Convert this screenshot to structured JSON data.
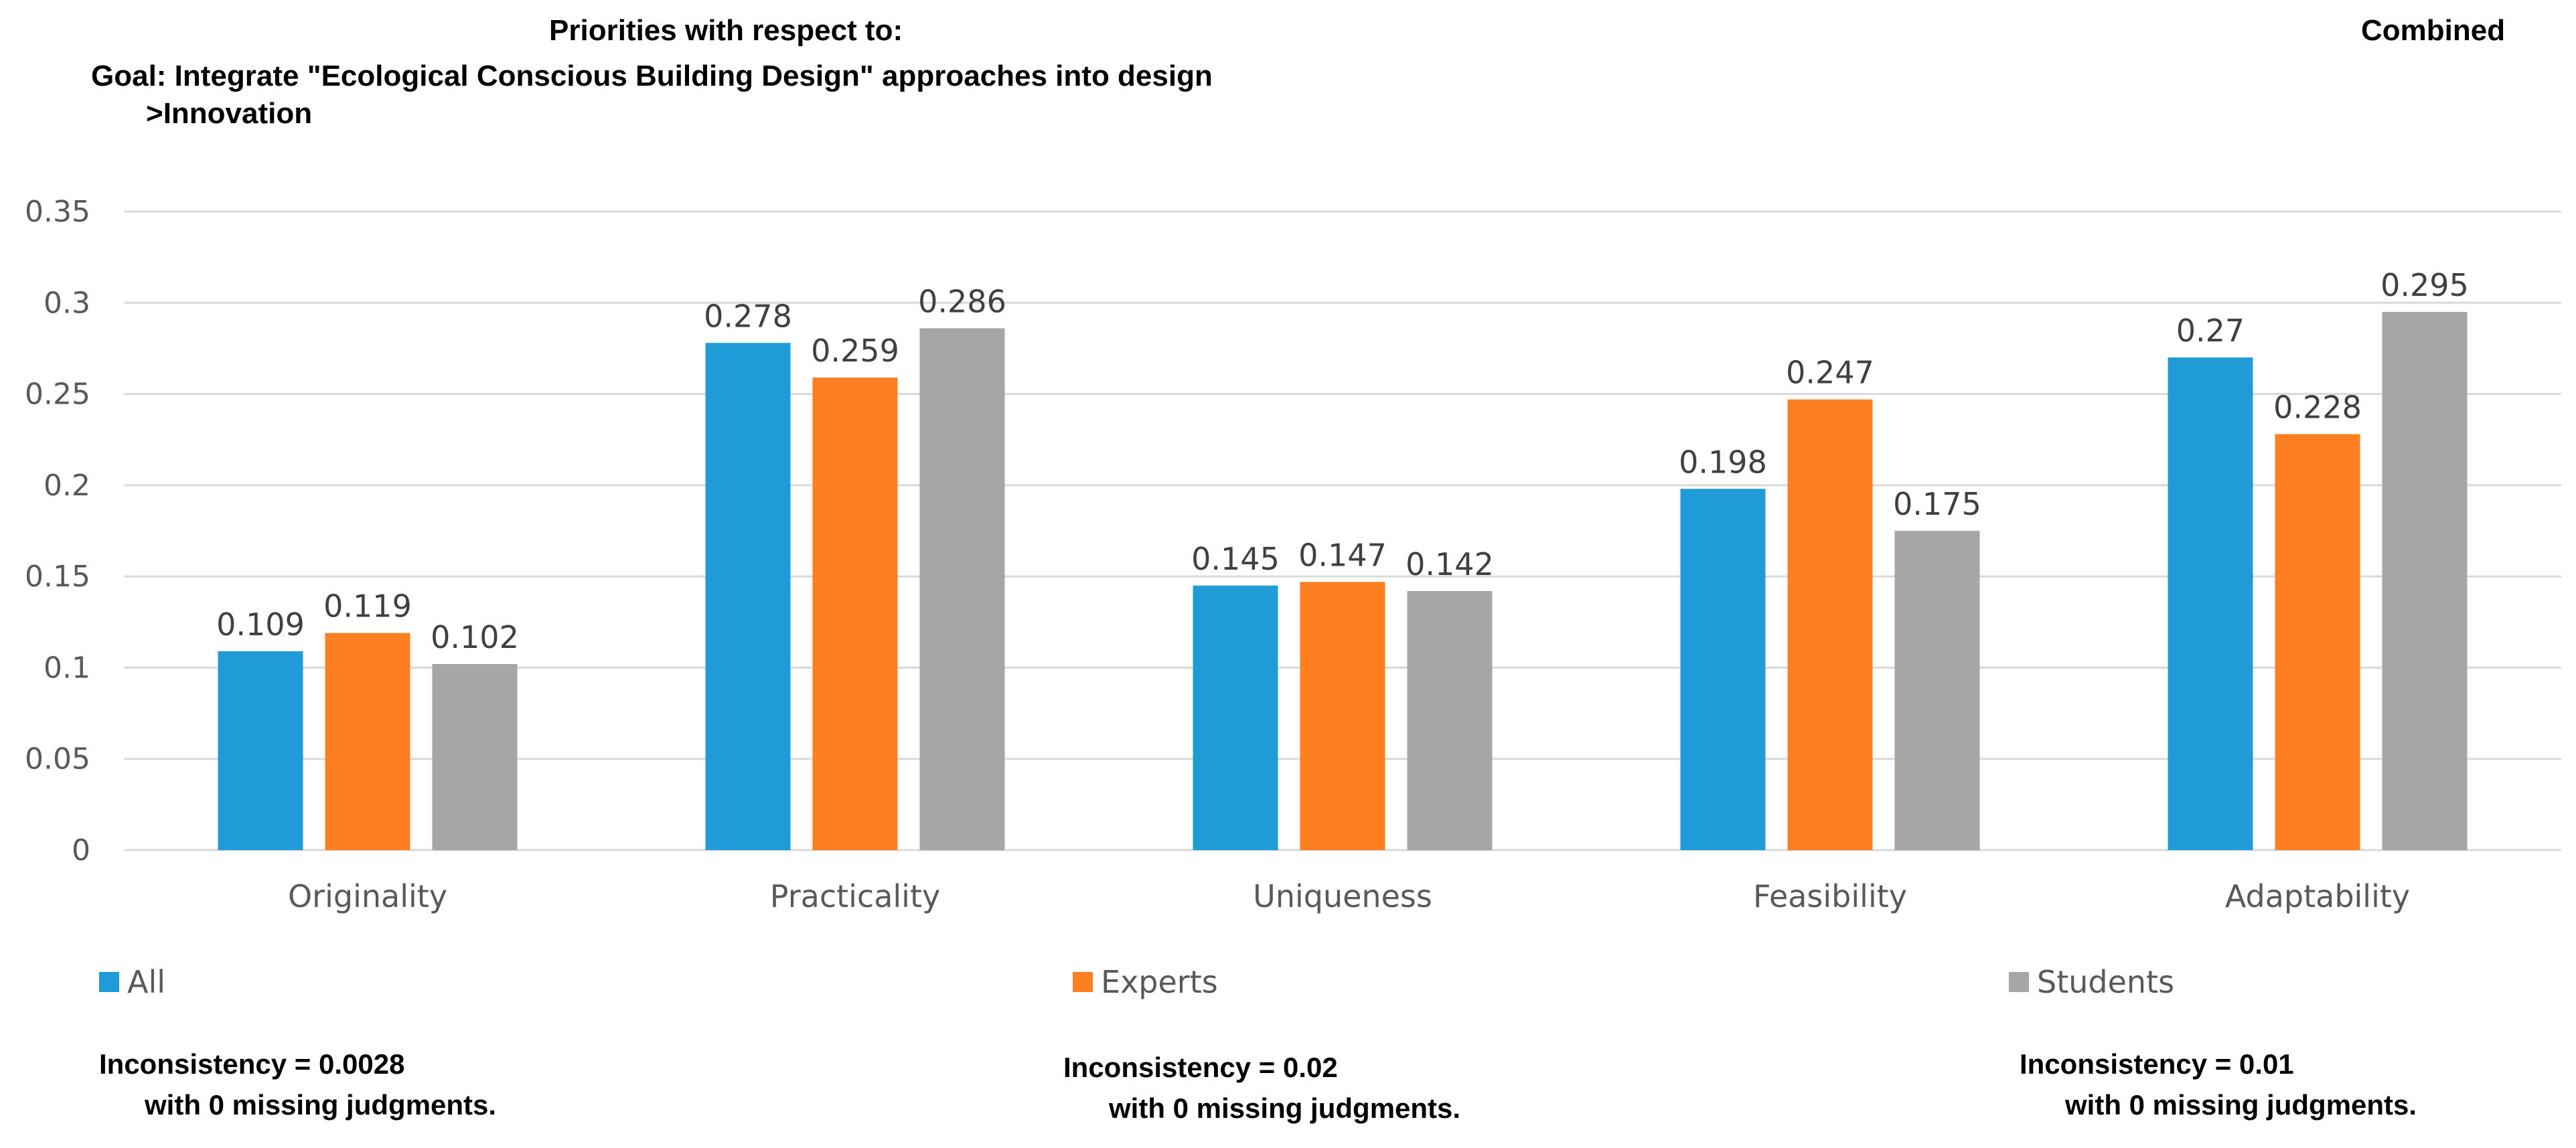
{
  "header": {
    "priorities": "Priorities with respect to:",
    "goal": "Goal: Integrate \"Ecological Conscious Building Design\" approaches into design",
    "sub": ">Innovation",
    "combined": "Combined"
  },
  "colors": {
    "All": "#1f9bd7",
    "Experts": "#fd7f22",
    "Students": "#a6a6a6",
    "grid": "#d9d9d9"
  },
  "chart_data": {
    "type": "bar",
    "categories": [
      "Originality",
      "Practicality",
      "Uniqueness",
      "Feasibility",
      "Adaptability"
    ],
    "series": [
      {
        "name": "All",
        "values": [
          0.109,
          0.278,
          0.145,
          0.198,
          0.27
        ]
      },
      {
        "name": "Experts",
        "values": [
          0.119,
          0.259,
          0.147,
          0.247,
          0.228
        ]
      },
      {
        "name": "Students",
        "values": [
          0.102,
          0.286,
          0.142,
          0.175,
          0.295
        ]
      }
    ],
    "ylim": [
      0,
      0.35
    ],
    "yticks": [
      "0",
      "0.05",
      "0.1",
      "0.15",
      "0.2",
      "0.25",
      "0.3",
      "0.35"
    ],
    "grid": true,
    "legend": "bottom"
  },
  "footer": {
    "all": {
      "inconsistency": "Inconsistency = 0.0028",
      "missing": "with 0  missing judgments."
    },
    "experts": {
      "inconsistency": "Inconsistency = 0.02",
      "missing": "with 0  missing judgments."
    },
    "students": {
      "inconsistency": "Inconsistency = 0.01",
      "missing": "with 0  missing judgments."
    }
  }
}
